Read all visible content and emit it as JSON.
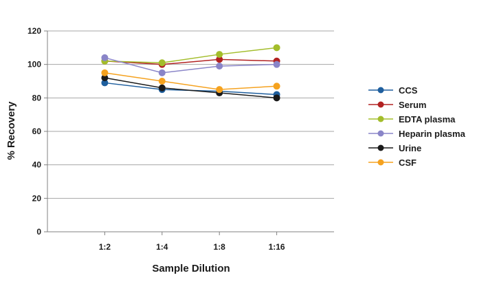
{
  "chart_data": {
    "type": "line",
    "title": "",
    "xlabel": "Sample Dilution",
    "ylabel": "% Recovery",
    "categories": [
      "1:2",
      "1:4",
      "1:8",
      "1:16"
    ],
    "ylim": [
      0,
      120
    ],
    "yticks": [
      0,
      20,
      40,
      60,
      80,
      100,
      120
    ],
    "grid": true,
    "legend_position": "right",
    "series": [
      {
        "name": "CCS",
        "color": "#1f5f9e",
        "values": [
          89,
          85,
          84,
          82
        ]
      },
      {
        "name": "Serum",
        "color": "#b22222",
        "values": [
          102,
          100,
          103,
          102
        ]
      },
      {
        "name": "EDTA plasma",
        "color": "#a3bd2b",
        "values": [
          102,
          101,
          106,
          110
        ]
      },
      {
        "name": "Heparin plasma",
        "color": "#8a85c8",
        "values": [
          104,
          95,
          99,
          100
        ]
      },
      {
        "name": "Urine",
        "color": "#1a1a1a",
        "values": [
          92,
          86,
          83,
          80
        ]
      },
      {
        "name": "CSF",
        "color": "#f5a21f",
        "values": [
          95,
          90,
          85,
          87
        ]
      }
    ]
  }
}
